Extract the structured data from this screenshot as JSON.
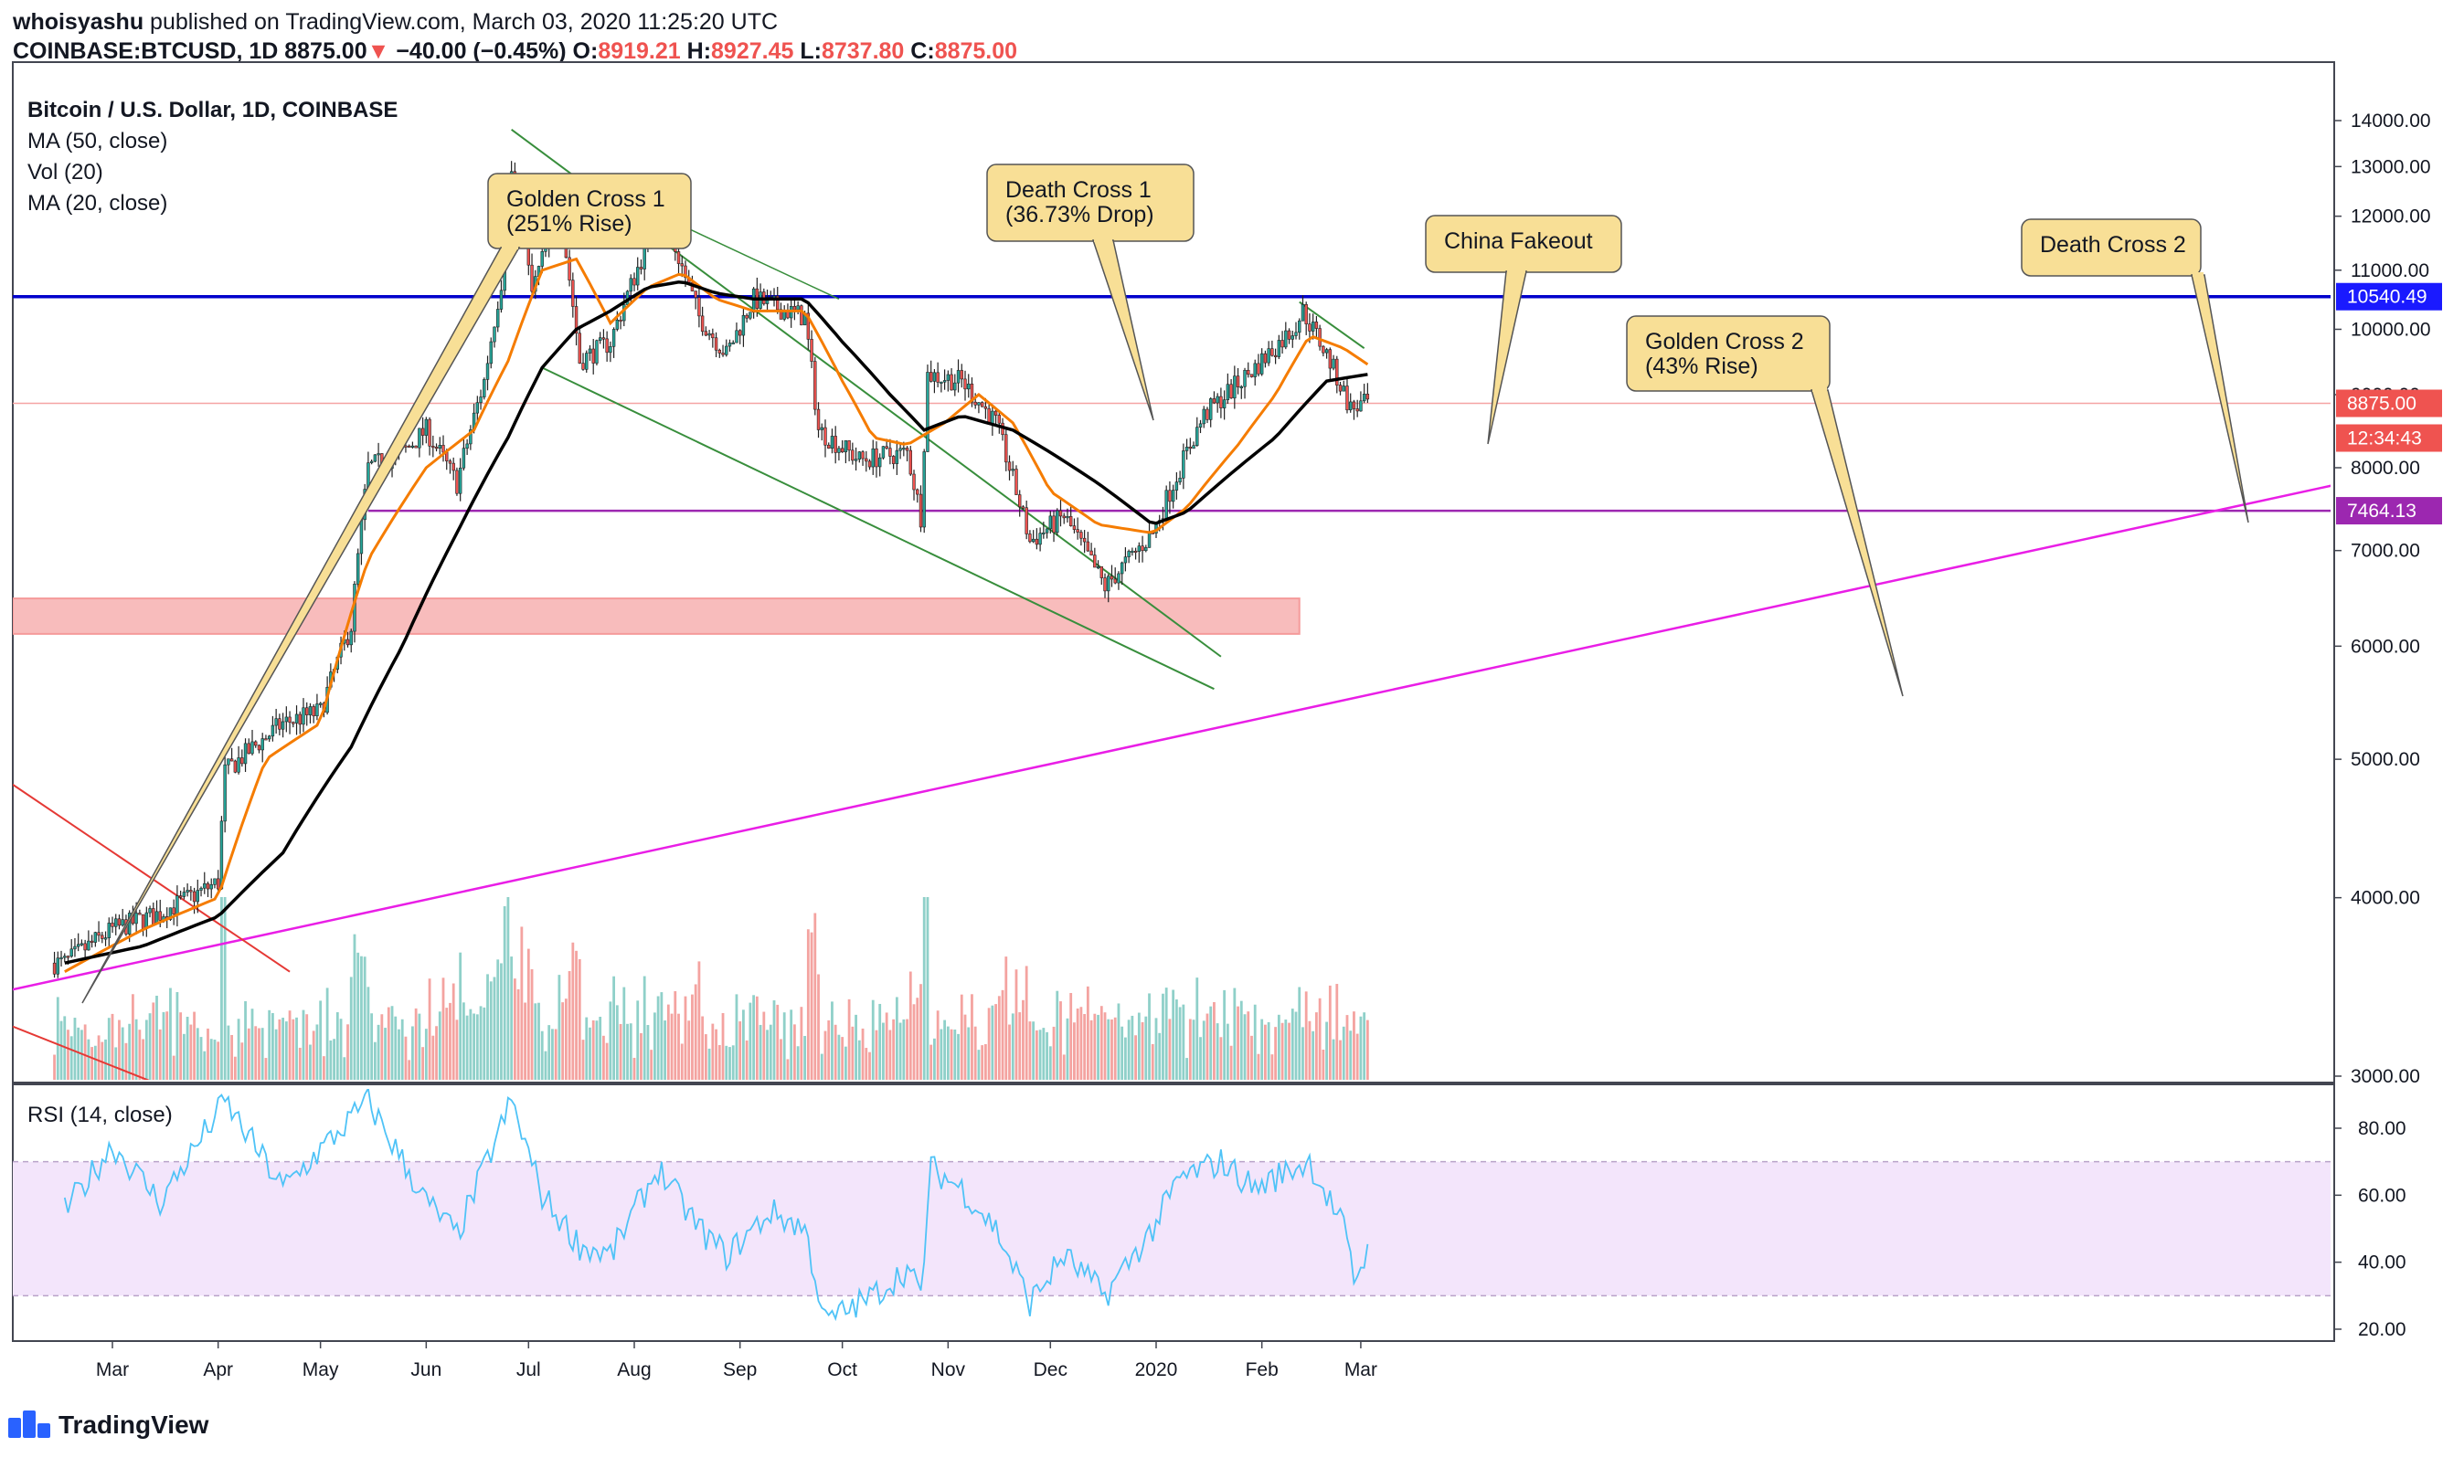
{
  "header": {
    "author": "whoisyashu",
    "published_text": "published on TradingView.com, March 03, 2020 11:25:20 UTC",
    "symbol": "COINBASE:BTCUSD, 1D",
    "last": "8875.00",
    "change_arrow": "▼",
    "change": "−40.00 (−0.45%)",
    "o_label": "O:",
    "o_value": "8919.21",
    "h_label": "H:",
    "h_value": "8927.45",
    "l_label": "L:",
    "l_value": "8737.80",
    "c_label": "C:",
    "c_value": "8875.00"
  },
  "legend": {
    "title": "Bitcoin / U.S. Dollar, 1D, COINBASE",
    "ma50": "MA (50, close)",
    "vol": "Vol (20)",
    "ma20": "MA (20, close)",
    "rsi": "RSI (14, close)"
  },
  "price_axis": {
    "ticks": [
      "14000.00",
      "13000.00",
      "12000.00",
      "11000.00",
      "10000.00",
      "9000.00",
      "8000.00",
      "7000.00",
      "6000.00",
      "5000.00",
      "4000.00",
      "3000.00"
    ],
    "tags": [
      {
        "label": "10540.49",
        "color": "#1a1aff"
      },
      {
        "label": "8875.00",
        "color": "#ef5350"
      },
      {
        "label": "12:34:43",
        "color": "#ef5350"
      },
      {
        "label": "7464.13",
        "color": "#9c27b0"
      }
    ]
  },
  "rsi_axis": {
    "ticks": [
      "80.00",
      "60.00",
      "40.00",
      "20.00"
    ]
  },
  "time_axis": {
    "ticks": [
      "Mar",
      "Apr",
      "May",
      "Jun",
      "Jul",
      "Aug",
      "Sep",
      "Oct",
      "Nov",
      "Dec",
      "2020",
      "Feb",
      "Mar"
    ]
  },
  "callouts": [
    {
      "id": "gc1",
      "lines": [
        "Golden Cross 1",
        "(251% Rise)"
      ]
    },
    {
      "id": "dc1",
      "lines": [
        "Death Cross 1",
        "(36.73% Drop)"
      ]
    },
    {
      "id": "china",
      "lines": [
        "China Fakeout"
      ]
    },
    {
      "id": "gc2",
      "lines": [
        "Golden Cross 2",
        "(43% Rise)"
      ]
    },
    {
      "id": "dc2",
      "lines": [
        "Death Cross 2"
      ]
    }
  ],
  "footer": {
    "brand": "TradingView"
  },
  "colors": {
    "up": "#26a69a",
    "down": "#ef5350",
    "ma50": "#000000",
    "ma20": "#f57c00",
    "resistance": "#0000cc",
    "support": "#9c27b0",
    "trend": "#e91ee6",
    "channel": "#388e3c",
    "zone": "#f8bcbc",
    "rsi_band": "#f3e5fb",
    "rsi_line": "#4fc3f7",
    "callout_fill": "#f8df96"
  },
  "chart_data": [
    {
      "type": "candlestick",
      "title": "Bitcoin / U.S. Dollar, 1D, COINBASE",
      "x_range": [
        "2019-02-12",
        "2020-03-03"
      ],
      "ylim": [
        3000,
        14300
      ],
      "y_scale": "log",
      "series": [
        {
          "name": "MA (50, close)",
          "points": [
            [
              "2019-02-15",
              3600
            ],
            [
              "2019-03-10",
              3700
            ],
            [
              "2019-04-01",
              3880
            ],
            [
              "2019-04-20",
              4300
            ],
            [
              "2019-05-10",
              5100
            ],
            [
              "2019-05-25",
              6000
            ],
            [
              "2019-06-10",
              7200
            ],
            [
              "2019-06-25",
              8400
            ],
            [
              "2019-07-05",
              9400
            ],
            [
              "2019-07-15",
              10000
            ],
            [
              "2019-07-25",
              10300
            ],
            [
              "2019-08-05",
              10700
            ],
            [
              "2019-08-15",
              10800
            ],
            [
              "2019-08-25",
              10600
            ],
            [
              "2019-09-05",
              10500
            ],
            [
              "2019-09-20",
              10500
            ],
            [
              "2019-10-01",
              9800
            ],
            [
              "2019-10-15",
              9000
            ],
            [
              "2019-10-25",
              8500
            ],
            [
              "2019-11-05",
              8700
            ],
            [
              "2019-11-20",
              8500
            ],
            [
              "2019-12-01",
              8200
            ],
            [
              "2019-12-15",
              7800
            ],
            [
              "2019-12-31",
              7300
            ],
            [
              "2020-01-10",
              7450
            ],
            [
              "2020-01-25",
              8000
            ],
            [
              "2020-02-05",
              8400
            ],
            [
              "2020-02-20",
              9200
            ],
            [
              "2020-03-03",
              9300
            ]
          ]
        },
        {
          "name": "MA (20, close)",
          "points": [
            [
              "2019-02-15",
              3550
            ],
            [
              "2019-03-10",
              3800
            ],
            [
              "2019-04-01",
              4000
            ],
            [
              "2019-04-15",
              5000
            ],
            [
              "2019-05-01",
              5300
            ],
            [
              "2019-05-15",
              6900
            ],
            [
              "2019-06-01",
              8000
            ],
            [
              "2019-06-15",
              8500
            ],
            [
              "2019-06-25",
              9500
            ],
            [
              "2019-07-05",
              11000
            ],
            [
              "2019-07-15",
              11200
            ],
            [
              "2019-07-25",
              10100
            ],
            [
              "2019-08-05",
              10700
            ],
            [
              "2019-08-15",
              10950
            ],
            [
              "2019-08-25",
              10500
            ],
            [
              "2019-09-05",
              10300
            ],
            [
              "2019-09-20",
              10300
            ],
            [
              "2019-10-01",
              9200
            ],
            [
              "2019-10-10",
              8400
            ],
            [
              "2019-10-20",
              8300
            ],
            [
              "2019-10-31",
              8600
            ],
            [
              "2019-11-10",
              9000
            ],
            [
              "2019-11-20",
              8600
            ],
            [
              "2019-12-01",
              7700
            ],
            [
              "2019-12-15",
              7300
            ],
            [
              "2019-12-31",
              7200
            ],
            [
              "2020-01-10",
              7500
            ],
            [
              "2020-01-25",
              8300
            ],
            [
              "2020-02-05",
              9000
            ],
            [
              "2020-02-15",
              9900
            ],
            [
              "2020-02-25",
              9700
            ],
            [
              "2020-03-03",
              9450
            ]
          ]
        },
        {
          "name": "Close",
          "points": [
            [
              "2019-02-15",
              3600
            ],
            [
              "2019-03-01",
              3800
            ],
            [
              "2019-03-15",
              3900
            ],
            [
              "2019-04-01",
              4100
            ],
            [
              "2019-04-03",
              4900
            ],
            [
              "2019-04-20",
              5300
            ],
            [
              "2019-05-01",
              5400
            ],
            [
              "2019-05-10",
              6200
            ],
            [
              "2019-05-15",
              8000
            ],
            [
              "2019-05-25",
              8200
            ],
            [
              "2019-06-01",
              8500
            ],
            [
              "2019-06-10",
              7800
            ],
            [
              "2019-06-18",
              9200
            ],
            [
              "2019-06-23",
              10800
            ],
            [
              "2019-06-26",
              12900
            ],
            [
              "2019-07-02",
              10600
            ],
            [
              "2019-07-10",
              12200
            ],
            [
              "2019-07-16",
              9500
            ],
            [
              "2019-07-25",
              9800
            ],
            [
              "2019-08-05",
              11500
            ],
            [
              "2019-08-10",
              11900
            ],
            [
              "2019-08-20",
              10200
            ],
            [
              "2019-08-28",
              9600
            ],
            [
              "2019-09-05",
              10500
            ],
            [
              "2019-09-20",
              10200
            ],
            [
              "2019-09-24",
              8500
            ],
            [
              "2019-10-06",
              8100
            ],
            [
              "2019-10-20",
              8200
            ],
            [
              "2019-10-24",
              7400
            ],
            [
              "2019-10-26",
              9300
            ],
            [
              "2019-11-05",
              9200
            ],
            [
              "2019-11-15",
              8600
            ],
            [
              "2019-11-25",
              7100
            ],
            [
              "2019-12-05",
              7400
            ],
            [
              "2019-12-17",
              6600
            ],
            [
              "2019-12-31",
              7200
            ],
            [
              "2020-01-06",
              7800
            ],
            [
              "2020-01-15",
              8700
            ],
            [
              "2020-01-30",
              9400
            ],
            [
              "2020-02-10",
              10000
            ],
            [
              "2020-02-13",
              10300
            ],
            [
              "2020-02-20",
              9600
            ],
            [
              "2020-02-27",
              8800
            ],
            [
              "2020-03-03",
              8875
            ]
          ]
        }
      ],
      "levels": [
        {
          "name": "Resistance",
          "value": 10540.49
        },
        {
          "name": "Support",
          "value": 7464.13
        },
        {
          "name": "Last",
          "value": 8875.0
        }
      ],
      "annotations": [
        "Golden Cross 1 (251% Rise)",
        "Death Cross 1 (36.73% Drop)",
        "China Fakeout",
        "Golden Cross 2 (43% Rise)",
        "Death Cross 2"
      ]
    },
    {
      "type": "line",
      "title": "RSI (14, close)",
      "ylim": [
        17,
        90
      ],
      "band": [
        30,
        70
      ],
      "series": [
        {
          "name": "RSI (14, close)",
          "points": [
            [
              "2019-02-15",
              55
            ],
            [
              "2019-03-01",
              75
            ],
            [
              "2019-03-15",
              58
            ],
            [
              "2019-04-03",
              88
            ],
            [
              "2019-04-20",
              62
            ],
            [
              "2019-05-15",
              88
            ],
            [
              "2019-06-01",
              58
            ],
            [
              "2019-06-10",
              48
            ],
            [
              "2019-06-26",
              88
            ],
            [
              "2019-07-05",
              60
            ],
            [
              "2019-07-16",
              45
            ],
            [
              "2019-07-25",
              42
            ],
            [
              "2019-08-08",
              68
            ],
            [
              "2019-08-20",
              50
            ],
            [
              "2019-08-28",
              42
            ],
            [
              "2019-09-10",
              55
            ],
            [
              "2019-09-20",
              50
            ],
            [
              "2019-09-26",
              22
            ],
            [
              "2019-10-10",
              30
            ],
            [
              "2019-10-20",
              38
            ],
            [
              "2019-10-24",
              30
            ],
            [
              "2019-10-27",
              68
            ],
            [
              "2019-11-05",
              62
            ],
            [
              "2019-11-15",
              50
            ],
            [
              "2019-11-25",
              28
            ],
            [
              "2019-12-05",
              42
            ],
            [
              "2019-12-17",
              30
            ],
            [
              "2019-12-31",
              50
            ],
            [
              "2020-01-08",
              65
            ],
            [
              "2020-01-20",
              70
            ],
            [
              "2020-01-30",
              62
            ],
            [
              "2020-02-10",
              68
            ],
            [
              "2020-02-15",
              70
            ],
            [
              "2020-02-25",
              50
            ],
            [
              "2020-02-28",
              35
            ],
            [
              "2020-03-03",
              43
            ]
          ]
        }
      ]
    }
  ]
}
